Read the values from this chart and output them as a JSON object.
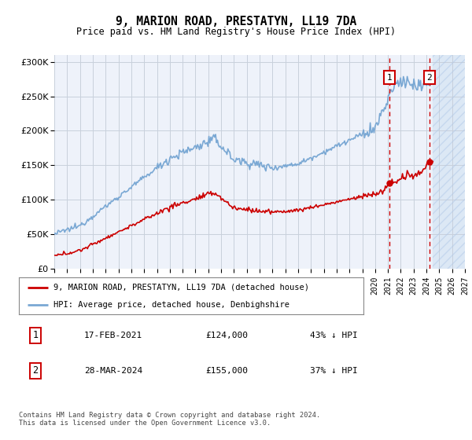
{
  "title": "9, MARION ROAD, PRESTATYN, LL19 7DA",
  "subtitle": "Price paid vs. HM Land Registry's House Price Index (HPI)",
  "legend_label_red": "9, MARION ROAD, PRESTATYN, LL19 7DA (detached house)",
  "legend_label_blue": "HPI: Average price, detached house, Denbighshire",
  "annotation1_date": "17-FEB-2021",
  "annotation1_price": "£124,000",
  "annotation1_pct": "43% ↓ HPI",
  "annotation2_date": "28-MAR-2024",
  "annotation2_price": "£155,000",
  "annotation2_pct": "37% ↓ HPI",
  "footer": "Contains HM Land Registry data © Crown copyright and database right 2024.\nThis data is licensed under the Open Government Licence v3.0.",
  "hpi_color": "#7aa8d4",
  "price_color": "#cc0000",
  "background_plot": "#eef2fa",
  "vline_color": "#cc0000",
  "grid_color": "#c8d0dc",
  "ylim": [
    0,
    310000
  ],
  "yticks": [
    0,
    50000,
    100000,
    150000,
    200000,
    250000,
    300000
  ],
  "sale1_year": 2021.12,
  "sale2_year": 2024.24,
  "future_start": 2024.5,
  "xmin": 1995,
  "xmax": 2027
}
